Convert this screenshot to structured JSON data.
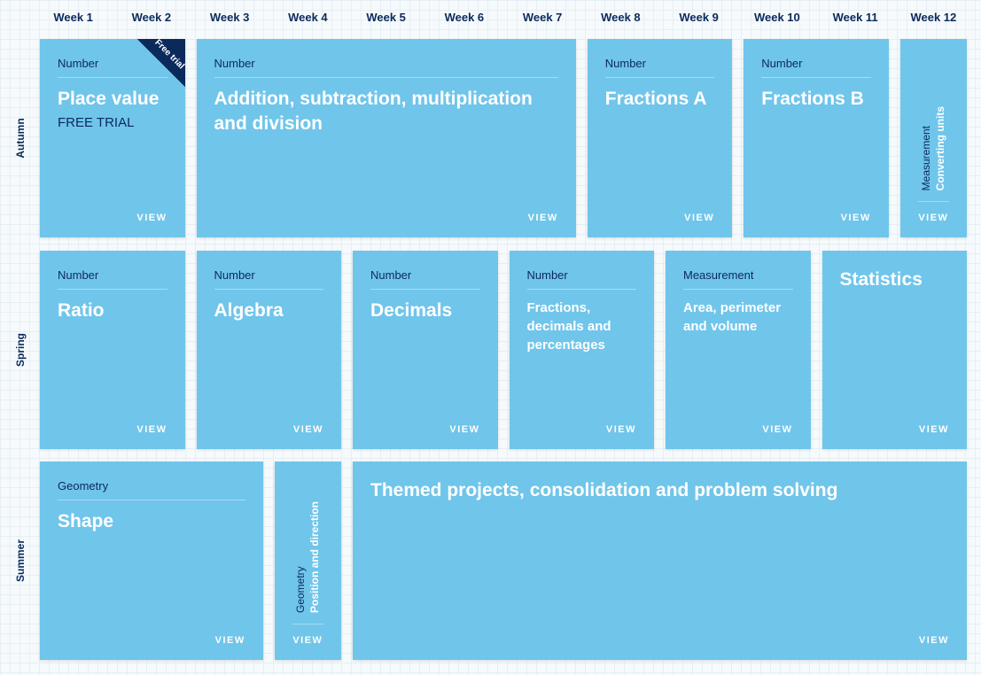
{
  "weeks": [
    "Week 1",
    "Week 2",
    "Week 3",
    "Week 4",
    "Week 5",
    "Week 6",
    "Week 7",
    "Week 8",
    "Week 9",
    "Week 10",
    "Week 11",
    "Week 12"
  ],
  "terms": [
    "Autumn",
    "Spring",
    "Summer"
  ],
  "view_label": "VIEW",
  "ribbon": "Free trial",
  "colors": {
    "card": "#70c5ea",
    "navy": "#0b2a5c"
  },
  "cards": [
    {
      "strand": "Number",
      "title": "Place value",
      "subtitle": "FREE TRIAL"
    },
    {
      "strand": "Number",
      "title": "Addition, subtraction, multiplication and division"
    },
    {
      "strand": "Number",
      "title": "Fractions A"
    },
    {
      "strand": "Number",
      "title": "Fractions B"
    },
    {
      "strand": "Measurement",
      "title": "Converting units"
    },
    {
      "strand": "Number",
      "title": "Ratio"
    },
    {
      "strand": "Number",
      "title": "Algebra"
    },
    {
      "strand": "Number",
      "title": "Decimals"
    },
    {
      "strand": "Number",
      "title": "Fractions, decimals and percentages"
    },
    {
      "strand": "Measurement",
      "title": "Area, perimeter and volume"
    },
    {
      "title": "Statistics"
    },
    {
      "strand": "Geometry",
      "title": "Shape"
    },
    {
      "strand": "Geometry",
      "title": "Position and direction"
    },
    {
      "title": "Themed projects, consolidation and problem solving"
    }
  ]
}
